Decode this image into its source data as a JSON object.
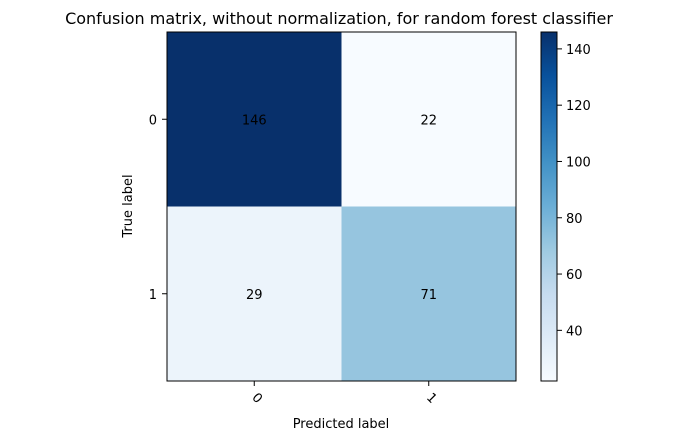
{
  "chart_data": {
    "type": "heatmap",
    "title": "Confusion matrix, without normalization, for random forest classifier",
    "xlabel": "Predicted label",
    "ylabel": "True label",
    "x_categories": [
      "0",
      "1"
    ],
    "y_categories": [
      "0",
      "1"
    ],
    "values": [
      [
        146,
        22
      ],
      [
        29,
        71
      ]
    ],
    "colormap": "Blues",
    "color_low": "#f7fbff",
    "color_high": "#08306b",
    "value_range": [
      22,
      146
    ],
    "colorbar": {
      "ticks": [
        "40",
        "60",
        "80",
        "100",
        "120",
        "140"
      ],
      "tick_values": [
        40,
        60,
        80,
        100,
        120,
        140
      ]
    },
    "annotation_colors": {
      "light": "#ffffff",
      "dark": "#000000"
    }
  }
}
